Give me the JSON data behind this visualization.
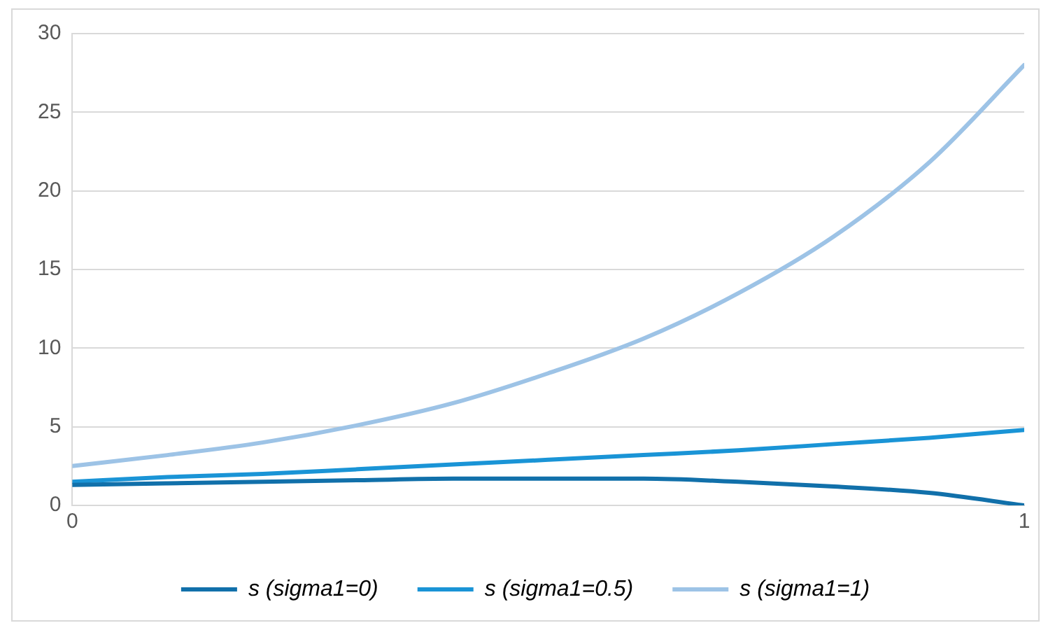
{
  "chart_data": {
    "type": "line",
    "x": [
      0,
      0.1,
      0.2,
      0.3,
      0.4,
      0.5,
      0.6,
      0.7,
      0.8,
      0.9,
      1
    ],
    "series": [
      {
        "name": "s (sigma1=0)",
        "color": "#1170aa",
        "values": [
          1.3,
          1.4,
          1.5,
          1.6,
          1.7,
          1.7,
          1.7,
          1.5,
          1.2,
          0.8,
          0
        ]
      },
      {
        "name": "s (sigma1=0.5)",
        "color": "#1a94d6",
        "values": [
          1.5,
          1.8,
          2,
          2.3,
          2.6,
          2.9,
          3.2,
          3.5,
          3.9,
          4.3,
          4.8
        ]
      },
      {
        "name": "s (sigma1=1)",
        "color": "#9dc3e6",
        "values": [
          2.5,
          3.2,
          4,
          5.1,
          6.5,
          8.4,
          10.6,
          13.5,
          17.1,
          21.8,
          28
        ]
      }
    ],
    "xlim": [
      0,
      1
    ],
    "xticks": [
      0,
      1
    ],
    "ylim": [
      0,
      30
    ],
    "yticks": [
      0,
      5,
      10,
      15,
      20,
      25,
      30
    ],
    "grid": "y",
    "legend": "bottom",
    "marker": "none",
    "line_style": "solid"
  }
}
